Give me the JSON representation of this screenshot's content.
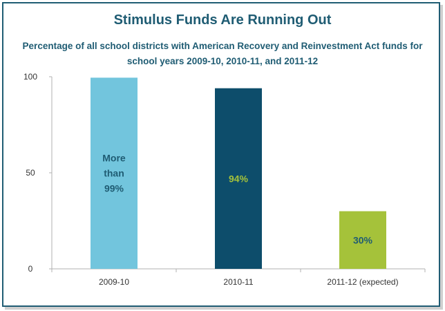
{
  "chart_data": {
    "type": "bar",
    "title": "Stimulus Funds Are Running Out",
    "subtitle": "Percentage of all school districts with American Recovery and Reinvestment Act funds for school years 2009-10, 2010-11, and 2011-12",
    "categories": [
      "2009-10",
      "2010-11",
      "2011-12 (expected)"
    ],
    "values": [
      99.5,
      94,
      30
    ],
    "data_labels": [
      [
        "More",
        "than",
        "99%"
      ],
      [
        "94%"
      ],
      [
        "30%"
      ]
    ],
    "bar_colors": [
      "#72c5dd",
      "#0d4d6b",
      "#a5c23a"
    ],
    "label_colors": [
      "#1f5c73",
      "#a5c23a",
      "#1f5c73"
    ],
    "y_ticks": [
      0,
      50,
      100
    ],
    "ylim": [
      0,
      100
    ],
    "grid": false,
    "legend": "none"
  }
}
